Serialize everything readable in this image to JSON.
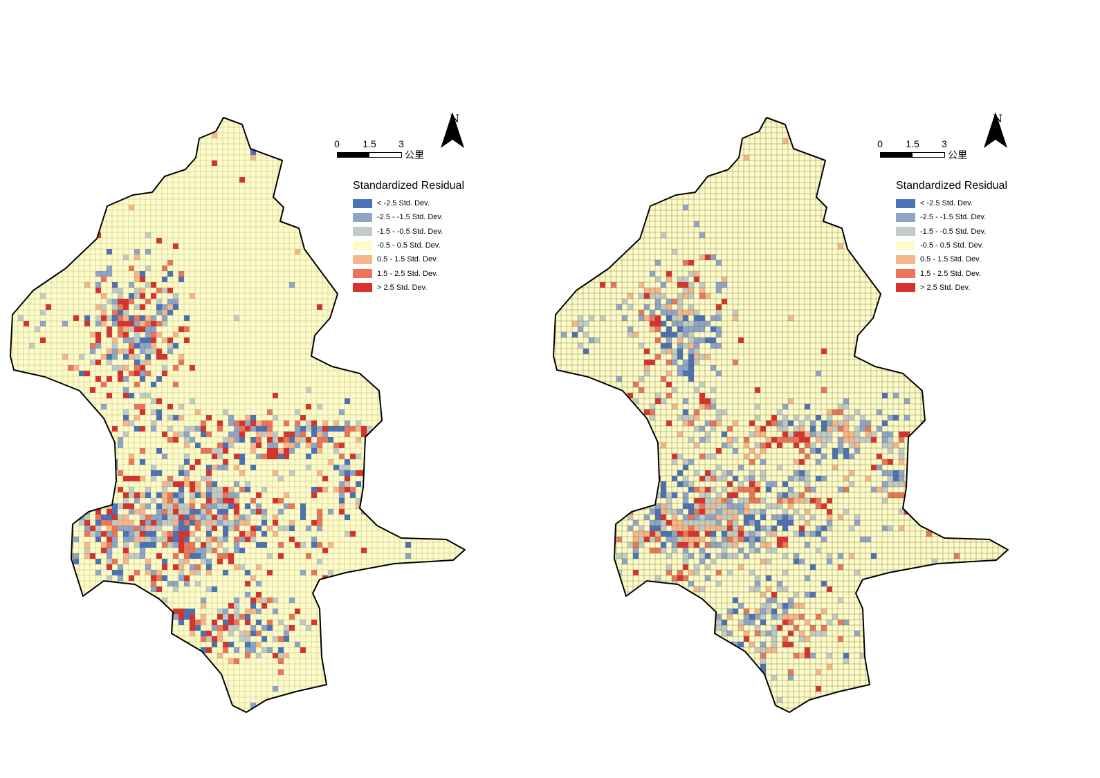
{
  "legend": {
    "title": "Standardized Residual",
    "classes": [
      {
        "label": "< -2.5 Std. Dev.",
        "color": "#4a72b5"
      },
      {
        "label": "-2.5 - -1.5 Std. Dev.",
        "color": "#8ea5c8"
      },
      {
        "label": "-1.5 - -0.5 Std. Dev.",
        "color": "#c1cbc4"
      },
      {
        "label": "-0.5 - 0.5 Std. Dev.",
        "color": "#fdfbc8"
      },
      {
        "label": "0.5 - 1.5 Std. Dev.",
        "color": "#f6b68a"
      },
      {
        "label": "1.5 - 2.5 Std. Dev.",
        "color": "#ea7559"
      },
      {
        "label": "> 2.5 Std. Dev.",
        "color": "#d9322e"
      }
    ]
  },
  "scale_bar": {
    "ticks": [
      "0",
      "1.5",
      "3"
    ],
    "unit": "公里"
  },
  "north_arrow": {
    "label": "N"
  },
  "colors": {
    "boundary": "#000000",
    "grid_line": "#6e6a3c",
    "background": "#ffffff"
  },
  "maps": [
    {
      "id": "left-map",
      "grid_opacity": 0.45
    },
    {
      "id": "right-map",
      "grid_opacity": 0.8
    }
  ]
}
